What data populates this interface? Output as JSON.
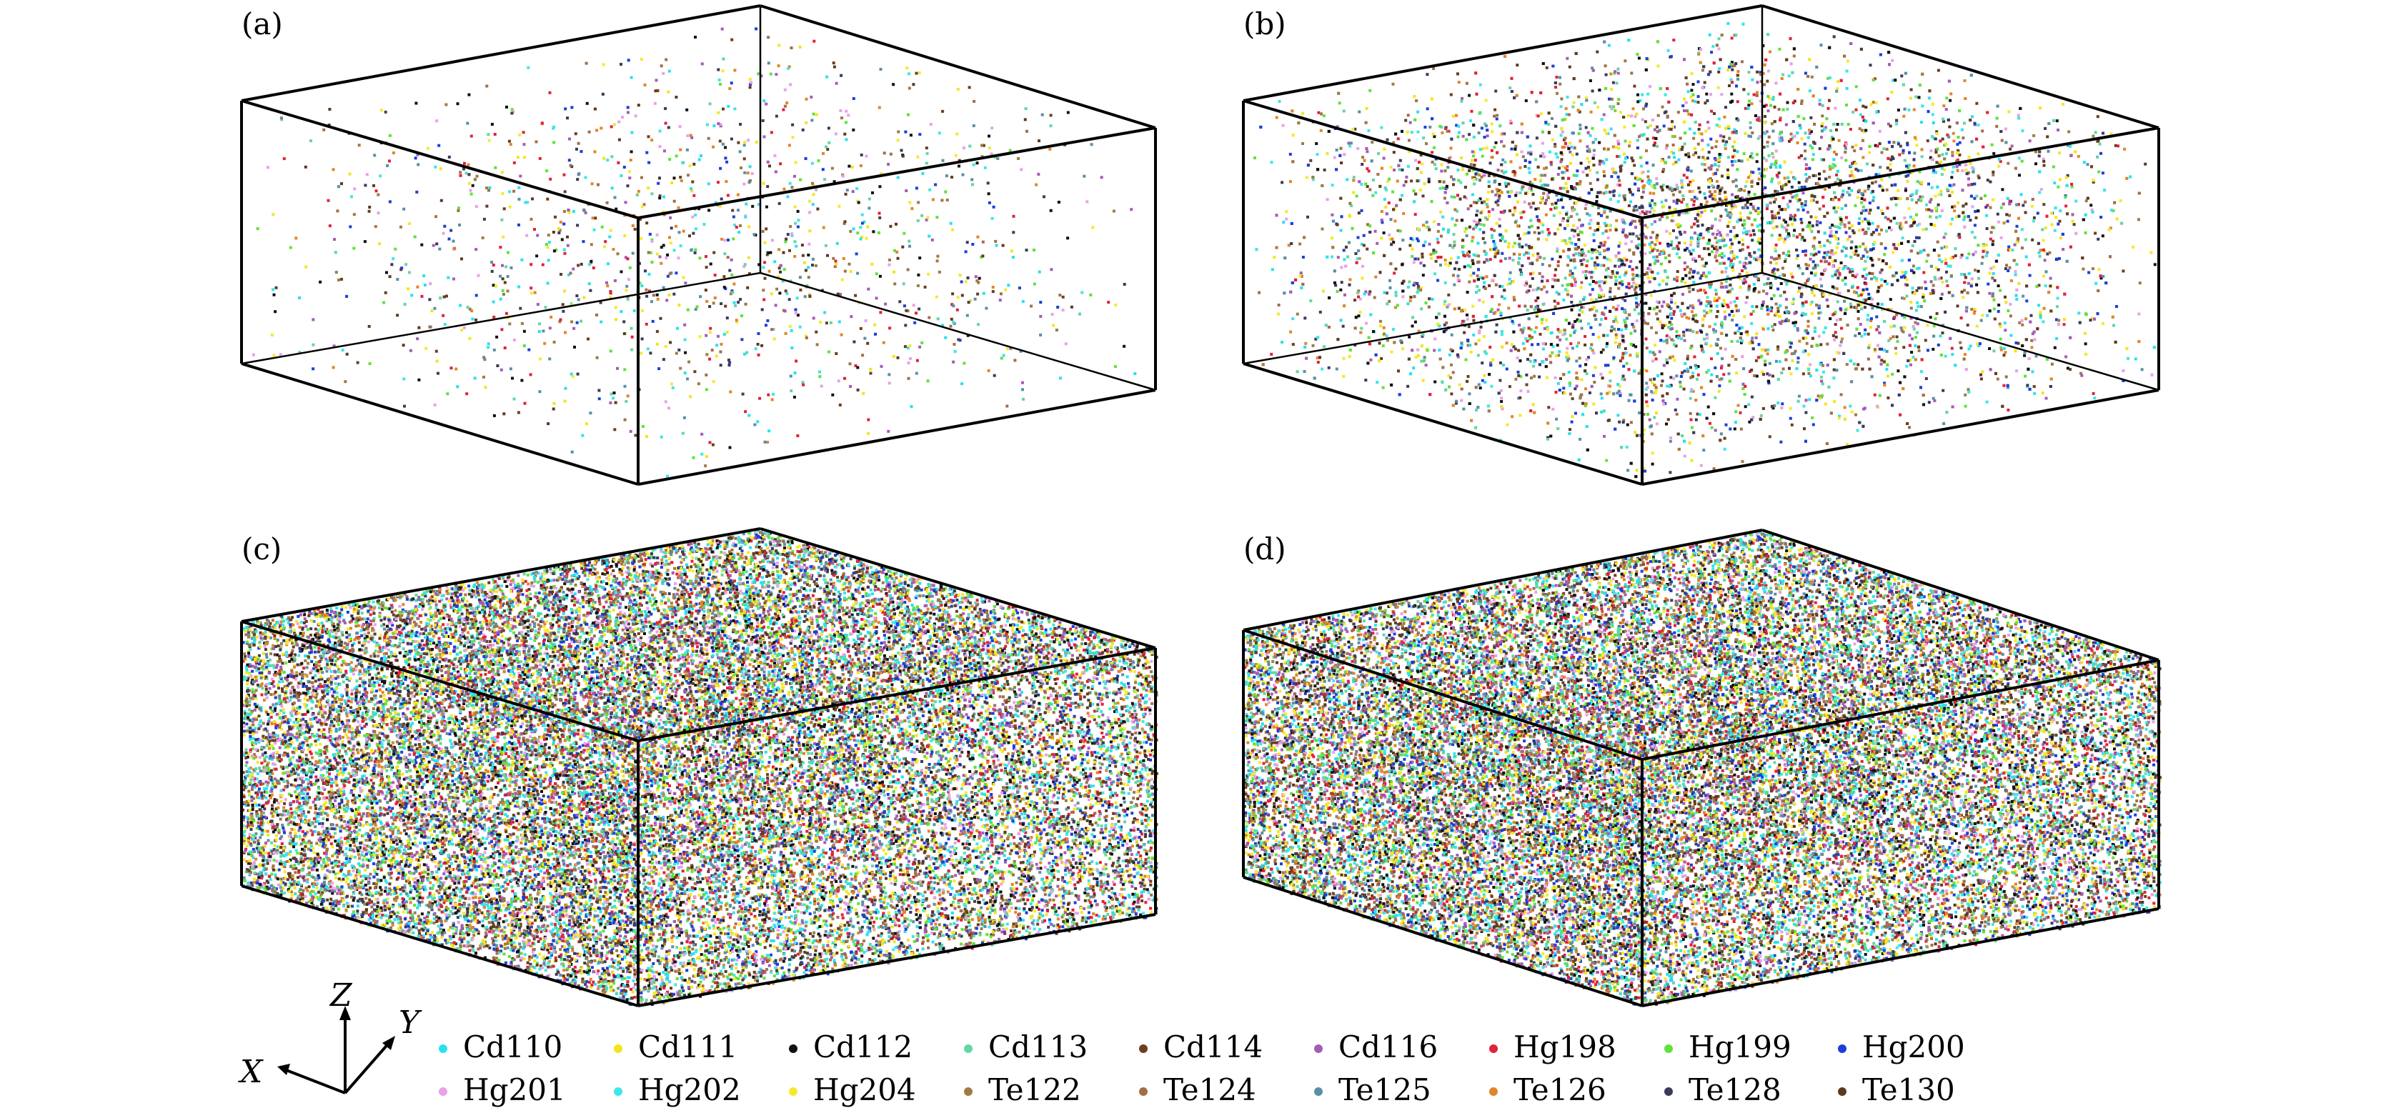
{
  "panels": [
    {
      "label": "(a)",
      "density": 0.1,
      "solid_faces": false
    },
    {
      "label": "(b)",
      "density": 0.55,
      "solid_faces": false
    },
    {
      "label": "(c)",
      "density": 0.9,
      "solid_faces": true
    },
    {
      "label": "(d)",
      "density": 1.0,
      "solid_faces": true
    }
  ],
  "axes": {
    "x": "X",
    "y": "Y",
    "z": "Z"
  },
  "legend": [
    {
      "name": "Cd110",
      "color": "#28e1ee"
    },
    {
      "name": "Cd111",
      "color": "#f2e51c"
    },
    {
      "name": "Cd112",
      "color": "#111111"
    },
    {
      "name": "Cd113",
      "color": "#63d6a6"
    },
    {
      "name": "Cd114",
      "color": "#6b3f20"
    },
    {
      "name": "Cd116",
      "color": "#a55bb8"
    },
    {
      "name": "Hg198",
      "color": "#e2213a"
    },
    {
      "name": "Hg199",
      "color": "#5fe23a"
    },
    {
      "name": "Hg200",
      "color": "#1c3fd8"
    },
    {
      "name": "Hg201",
      "color": "#e7a2e8"
    },
    {
      "name": "Hg202",
      "color": "#3fe6e6"
    },
    {
      "name": "Hg204",
      "color": "#f5ea2a"
    },
    {
      "name": "Te122",
      "color": "#a07a45"
    },
    {
      "name": "Te124",
      "color": "#a06f4a"
    },
    {
      "name": "Te125",
      "color": "#5a8fa6"
    },
    {
      "name": "Te126",
      "color": "#e0862a"
    },
    {
      "name": "Te128",
      "color": "#3a3a5c"
    },
    {
      "name": "Te130",
      "color": "#5b3a22"
    }
  ]
}
